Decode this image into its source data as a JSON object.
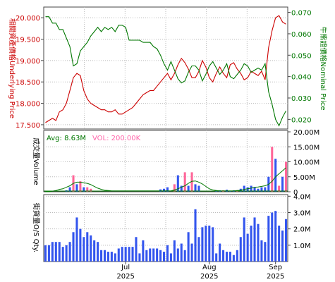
{
  "chart_data": [
    {
      "type": "line",
      "panel": "price",
      "x_month_labels": [
        "Jul",
        "Aug",
        "Sep"
      ],
      "x_year_labels": [
        "2025",
        "2025",
        "2025"
      ],
      "ylabel_left": "相關資產價格Underlying Price",
      "ylabel_right": "牛熊證價格Nominal Price",
      "left_ticks": [
        "20.000",
        "19.500",
        "19.000",
        "18.500",
        "18.000",
        "17.500"
      ],
      "left_ylim": [
        17.4,
        20.25
      ],
      "right_ticks": [
        "0.070",
        "0.060",
        "0.050",
        "0.040",
        "0.030",
        "0.020"
      ],
      "right_ylim": [
        0.0155,
        0.0725
      ],
      "grid": true,
      "series": [
        {
          "color": "#cc0000",
          "axis": "left",
          "values": [
            17.55,
            17.6,
            17.65,
            17.6,
            17.8,
            17.85,
            18.0,
            18.3,
            18.6,
            18.7,
            18.65,
            18.3,
            18.1,
            18.0,
            17.95,
            17.9,
            17.85,
            17.85,
            17.8,
            17.8,
            17.85,
            17.75,
            17.75,
            17.8,
            17.85,
            17.9,
            18.0,
            18.1,
            18.2,
            18.25,
            18.3,
            18.3,
            18.4,
            18.5,
            18.6,
            18.7,
            18.55,
            18.7,
            18.9,
            19.05,
            18.95,
            18.8,
            18.6,
            18.6,
            18.75,
            19.0,
            18.85,
            18.6,
            18.5,
            18.7,
            18.85,
            18.7,
            18.6,
            18.9,
            18.95,
            18.8,
            18.7,
            18.55,
            18.6,
            18.75,
            18.7,
            18.65,
            18.75,
            18.55,
            19.3,
            19.7,
            20.0,
            20.05,
            19.9,
            19.85
          ]
        },
        {
          "color": "#007700",
          "axis": "right",
          "values": [
            0.068,
            0.068,
            0.065,
            0.065,
            0.062,
            0.062,
            0.058,
            0.054,
            0.045,
            0.046,
            0.052,
            0.054,
            0.056,
            0.059,
            0.061,
            0.063,
            0.061,
            0.063,
            0.062,
            0.063,
            0.061,
            0.064,
            0.064,
            0.063,
            0.057,
            0.057,
            0.057,
            0.057,
            0.056,
            0.056,
            0.056,
            0.054,
            0.053,
            0.05,
            0.046,
            0.043,
            0.047,
            0.043,
            0.039,
            0.037,
            0.038,
            0.042,
            0.045,
            0.045,
            0.043,
            0.038,
            0.041,
            0.045,
            0.047,
            0.044,
            0.041,
            0.043,
            0.046,
            0.04,
            0.039,
            0.041,
            0.043,
            0.046,
            0.045,
            0.042,
            0.043,
            0.044,
            0.043,
            0.046,
            0.033,
            0.027,
            0.02,
            0.017,
            0.021,
            0.024
          ]
        }
      ]
    },
    {
      "type": "bar",
      "panel": "volume",
      "ylabel": "成交量Volume",
      "avg_label": "Avg: 8.63M",
      "vol_label": "VOL: 200.00K",
      "ticks": [
        "20.00M",
        "15.00M",
        "10.00M",
        "5.00M",
        "0"
      ],
      "ylim": [
        0,
        20
      ],
      "unit": "M",
      "bar_colors": {
        "pink": "#ff6699",
        "blue": "#3355ee"
      },
      "bar_color_sequence": [
        "b",
        "b",
        "b",
        "b",
        "b",
        "b",
        "b",
        "b",
        "p",
        "b",
        "p",
        "b",
        "p",
        "p",
        "b",
        "b",
        "b",
        "b",
        "b",
        "b",
        "b",
        "b",
        "b",
        "b",
        "b",
        "b",
        "b",
        "b",
        "b",
        "b",
        "b",
        "b",
        "b",
        "b",
        "b",
        "b",
        "b",
        "p",
        "b",
        "b",
        "p",
        "b",
        "p",
        "b",
        "b",
        "b",
        "b",
        "b",
        "b",
        "b",
        "b",
        "p",
        "b",
        "b",
        "b",
        "p",
        "b",
        "b",
        "b",
        "b",
        "b",
        "b",
        "b",
        "b",
        "b",
        "p",
        "b",
        "p",
        "b",
        "p"
      ],
      "values": [
        0,
        0,
        0,
        0,
        0,
        0,
        0.5,
        1.5,
        5.5,
        2.5,
        3.5,
        1.5,
        1.5,
        1.0,
        0,
        0,
        0,
        0,
        0,
        0,
        0,
        0,
        0,
        0,
        0,
        0,
        0,
        0,
        0,
        0,
        0,
        0,
        0,
        0.8,
        1.0,
        1.5,
        0,
        2.5,
        5.5,
        2.0,
        6.5,
        2.0,
        6.5,
        2.5,
        2.0,
        0,
        0,
        0,
        0,
        0.5,
        0.5,
        0.5,
        0.7,
        0.3,
        0.5,
        0.5,
        1.0,
        2.0,
        1.5,
        2.0,
        1.5,
        1.0,
        1.5,
        1.5,
        5.0,
        15.0,
        11.0,
        2.0,
        5.0,
        10.0
      ],
      "avg_line": [
        0,
        0,
        0.2,
        0.4,
        0.8,
        1.0,
        1.5,
        2.0,
        2.8,
        3.2,
        3.2,
        3.0,
        2.8,
        2.4,
        1.8,
        1.2,
        0.8,
        0.5,
        0.4,
        0.3,
        0.3,
        0.3,
        0.3,
        0.3,
        0.3,
        0.3,
        0.3,
        0.3,
        0.3,
        0.3,
        0.3,
        0.3,
        0.3,
        0.3,
        0.3,
        0.3,
        0.3,
        0.6,
        1.0,
        1.5,
        2.0,
        2.8,
        3.5,
        3.6,
        3.2,
        2.6,
        1.8,
        1.0,
        0.6,
        0.4,
        0.3,
        0.3,
        0.3,
        0.3,
        0.3,
        0.4,
        0.5,
        0.8,
        1.0,
        1.2,
        1.5,
        1.6,
        1.8,
        2.0,
        2.5,
        3.5,
        5.0,
        6.0,
        7.0,
        8.0
      ]
    },
    {
      "type": "bar",
      "panel": "outstanding",
      "ylabel": "街貨量O/S Qty.",
      "ticks": [
        "4.0M",
        "3.0M",
        "2.0M",
        "1.0M"
      ],
      "ylim": [
        0,
        4.1
      ],
      "unit": "M",
      "bar_color": "#3355ee",
      "values": [
        1.0,
        1.0,
        1.2,
        1.2,
        1.2,
        0.9,
        1.0,
        1.2,
        1.8,
        2.7,
        2.0,
        1.5,
        1.8,
        1.6,
        1.3,
        1.2,
        0.7,
        0.7,
        0.6,
        0.6,
        0.5,
        0.8,
        0.9,
        0.9,
        0.9,
        0.9,
        1.5,
        0.5,
        1.3,
        0.7,
        0.8,
        0.8,
        0.8,
        0.7,
        0.6,
        1.0,
        0.5,
        1.3,
        0.8,
        1.1,
        0.7,
        1.8,
        1.1,
        3.2,
        1.5,
        2.1,
        2.2,
        2.2,
        2.1,
        0.5,
        1.1,
        0.7,
        0.6,
        0.6,
        0.4,
        0.7,
        1.5,
        2.7,
        1.7,
        2.2,
        2.7,
        2.3,
        1.3,
        1.2,
        2.8,
        3.0,
        3.1,
        2.2,
        1.9,
        2.6
      ]
    }
  ]
}
